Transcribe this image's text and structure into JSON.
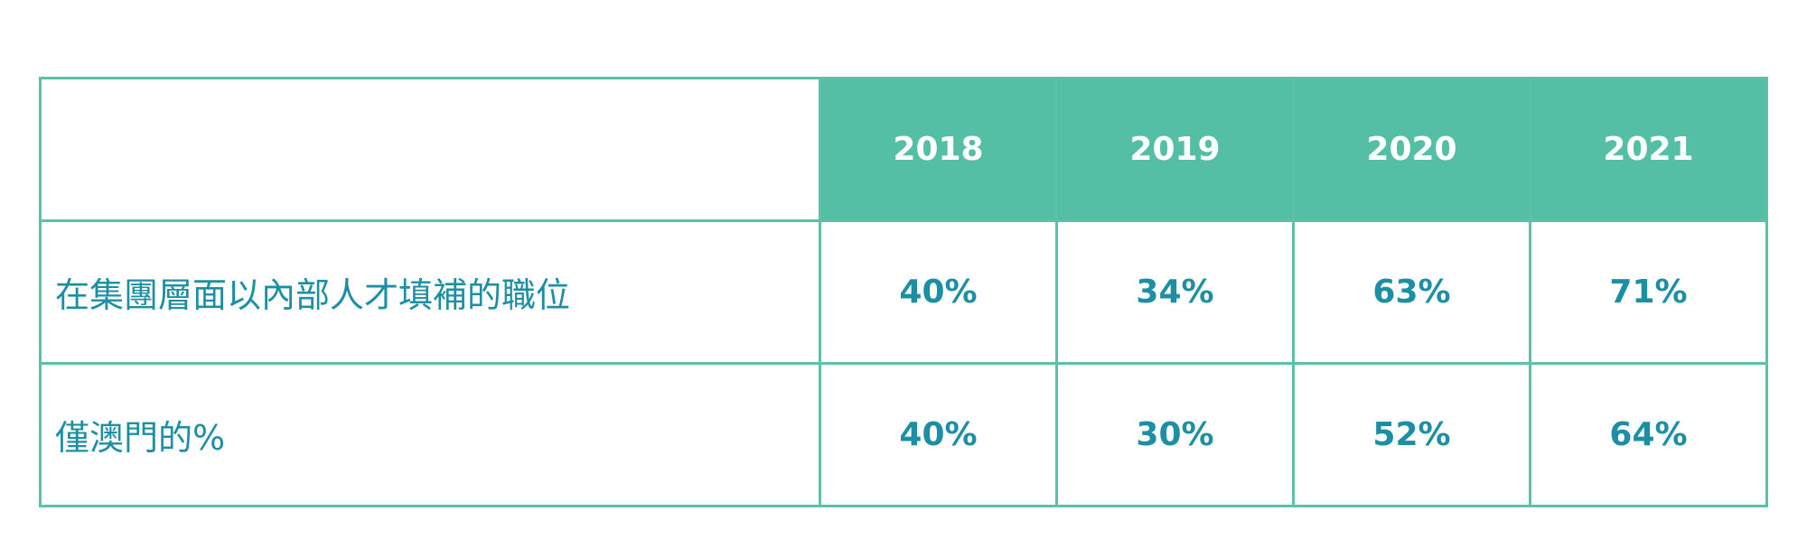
{
  "table": {
    "years": [
      "2018",
      "2019",
      "2020",
      "2021"
    ],
    "rows": [
      {
        "label": "在集團層面以內部人才填補的職位",
        "values": [
          "40%",
          "34%",
          "63%",
          "71%"
        ]
      },
      {
        "label": "僅澳門的%",
        "values": [
          "40%",
          "30%",
          "52%",
          "64%"
        ]
      }
    ]
  },
  "colors": {
    "header_background": "#55bfa5",
    "header_text": "#ffffff",
    "border": "#5cc1a6",
    "body_text": "#1d8fa5"
  }
}
